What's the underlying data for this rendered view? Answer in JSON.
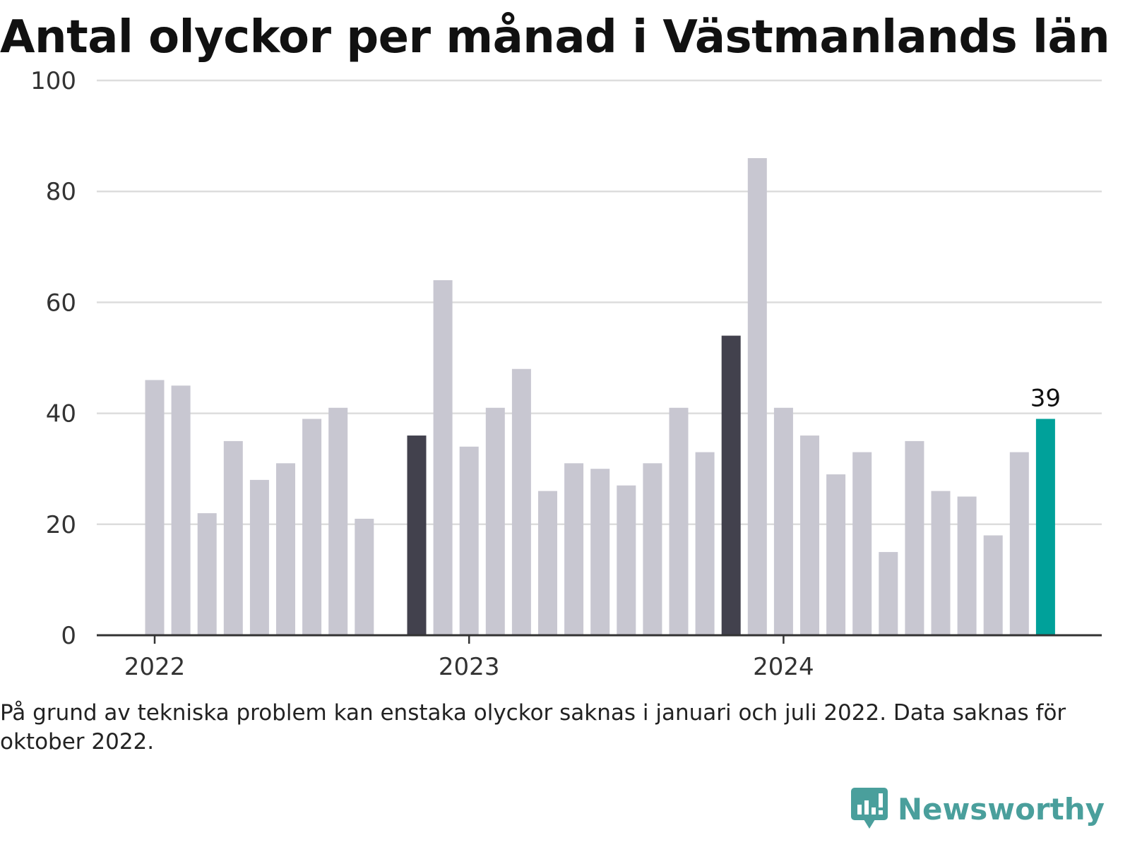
{
  "chart_data": {
    "type": "bar",
    "title": "Antal olyckor per månad i Västmanlands län",
    "ylim": [
      0,
      100
    ],
    "yticks": [
      0,
      20,
      40,
      60,
      80,
      100
    ],
    "xticks": [
      {
        "label": "2022",
        "month": "2022-01"
      },
      {
        "label": "2023",
        "month": "2023-01"
      },
      {
        "label": "2024",
        "month": "2024-01"
      }
    ],
    "categories": [
      "2022-01",
      "2022-02",
      "2022-03",
      "2022-04",
      "2022-05",
      "2022-06",
      "2022-07",
      "2022-08",
      "2022-09",
      "2022-10",
      "2022-11",
      "2022-12",
      "2023-01",
      "2023-02",
      "2023-03",
      "2023-04",
      "2023-05",
      "2023-06",
      "2023-07",
      "2023-08",
      "2023-09",
      "2023-10",
      "2023-11",
      "2023-12",
      "2024-01",
      "2024-02",
      "2024-03",
      "2024-04",
      "2024-05",
      "2024-06",
      "2024-07",
      "2024-08",
      "2024-09",
      "2024-10",
      "2024-11",
      "2024-12"
    ],
    "values": [
      46,
      45,
      22,
      35,
      28,
      31,
      39,
      41,
      21,
      null,
      36,
      64,
      34,
      41,
      48,
      26,
      31,
      30,
      27,
      31,
      41,
      33,
      54,
      86,
      41,
      36,
      29,
      33,
      15,
      35,
      26,
      25,
      18,
      33,
      39,
      null
    ],
    "highlight": {
      "2022-11": "dark",
      "2023-11": "dark",
      "2024-11": "accent"
    },
    "data_labels": [
      {
        "month": "2024-11",
        "text": "39"
      }
    ],
    "colors": {
      "default": "#c8c7d1",
      "dark": "#42414d",
      "accent": "#00a19a",
      "grid": "#dddddd",
      "axis": "#333333"
    },
    "grid": true
  },
  "note": "På grund av tekniska problem kan enstaka olyckor saknas i januari och juli 2022. Data saknas för oktober 2022.",
  "brand": {
    "name": "Newsworthy",
    "icon": "newsworthy-logo-icon",
    "color": "#4a9f9c"
  }
}
